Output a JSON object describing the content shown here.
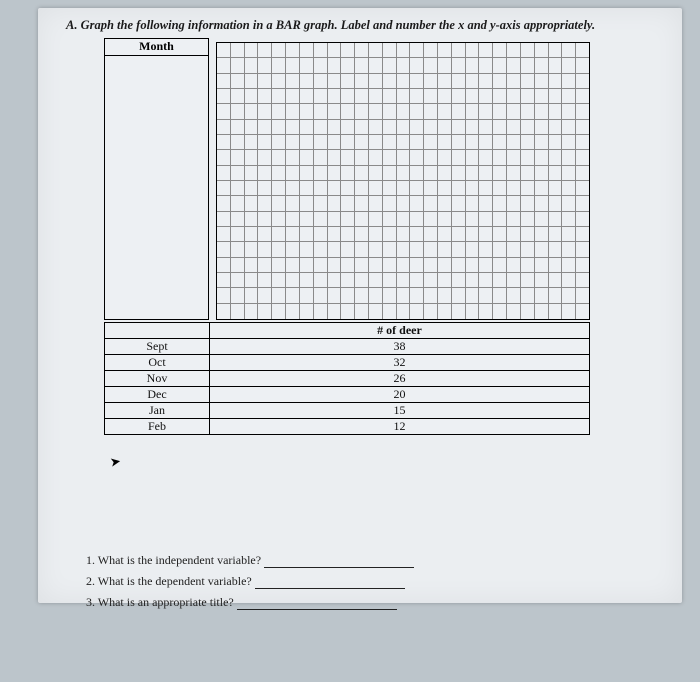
{
  "instruction": "A. Graph the following information in a BAR graph. Label and number the x and y-axis appropriately.",
  "month_header": "Month",
  "table": {
    "header_deer": "# of deer",
    "rows": [
      {
        "month": "Sept",
        "deer": "38"
      },
      {
        "month": "Oct",
        "deer": "32"
      },
      {
        "month": "Nov",
        "deer": "26"
      },
      {
        "month": "Dec",
        "deer": "20"
      },
      {
        "month": "Jan",
        "deer": "15"
      },
      {
        "month": "Feb",
        "deer": "12"
      }
    ]
  },
  "grid": {
    "cols": 27,
    "rows": 18
  },
  "questions": {
    "q1": "1. What is the independent variable?",
    "q2": "2. What is the dependent variable?",
    "q3": "3. What is an appropriate title?"
  },
  "blank_widths": {
    "q1": 150,
    "q2": 150,
    "q3": 160
  },
  "colors": {
    "page_bg": "#ebeef1",
    "outer_bg": "#bcc5cb",
    "grid_line": "#8a8a8a",
    "border": "#000000",
    "text": "#1a1a1a"
  }
}
